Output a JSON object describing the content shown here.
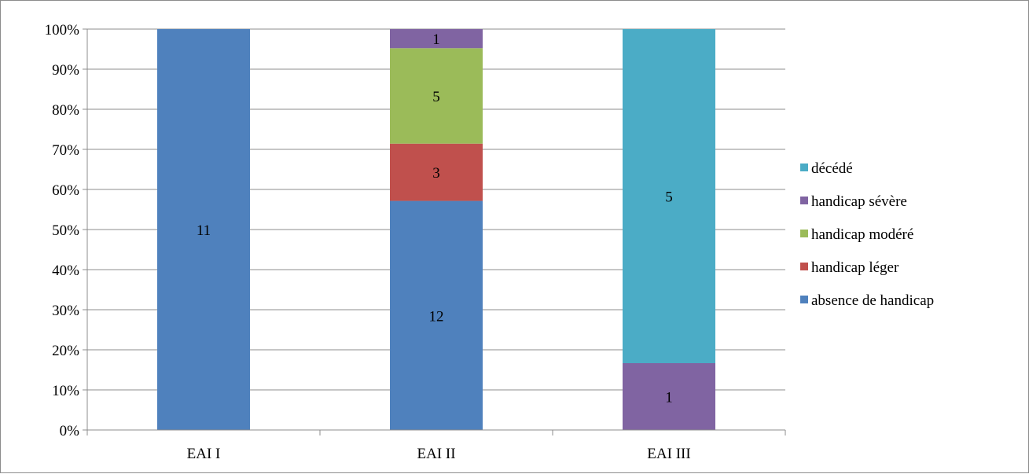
{
  "chart_data": {
    "type": "bar",
    "stacked": "percent",
    "categories": [
      "EAI I",
      "EAI II",
      "EAI III"
    ],
    "series": [
      {
        "name": "absence de handicap",
        "color": "#4F81BD",
        "values": [
          11,
          12,
          0
        ]
      },
      {
        "name": "handicap léger",
        "color": "#C0504D",
        "values": [
          0,
          3,
          0
        ]
      },
      {
        "name": "handicap modéré",
        "color": "#9BBB59",
        "values": [
          0,
          5,
          0
        ]
      },
      {
        "name": "handicap sévère",
        "color": "#8064A2",
        "values": [
          0,
          1,
          1
        ]
      },
      {
        "name": "décédé",
        "color": "#4BACC6",
        "values": [
          0,
          0,
          5
        ]
      }
    ],
    "y_ticks": [
      "0%",
      "10%",
      "20%",
      "30%",
      "40%",
      "50%",
      "60%",
      "70%",
      "80%",
      "90%",
      "100%"
    ],
    "ylim": [
      0,
      100
    ],
    "grid": true,
    "legend": "right",
    "legend_order": "reversed"
  }
}
